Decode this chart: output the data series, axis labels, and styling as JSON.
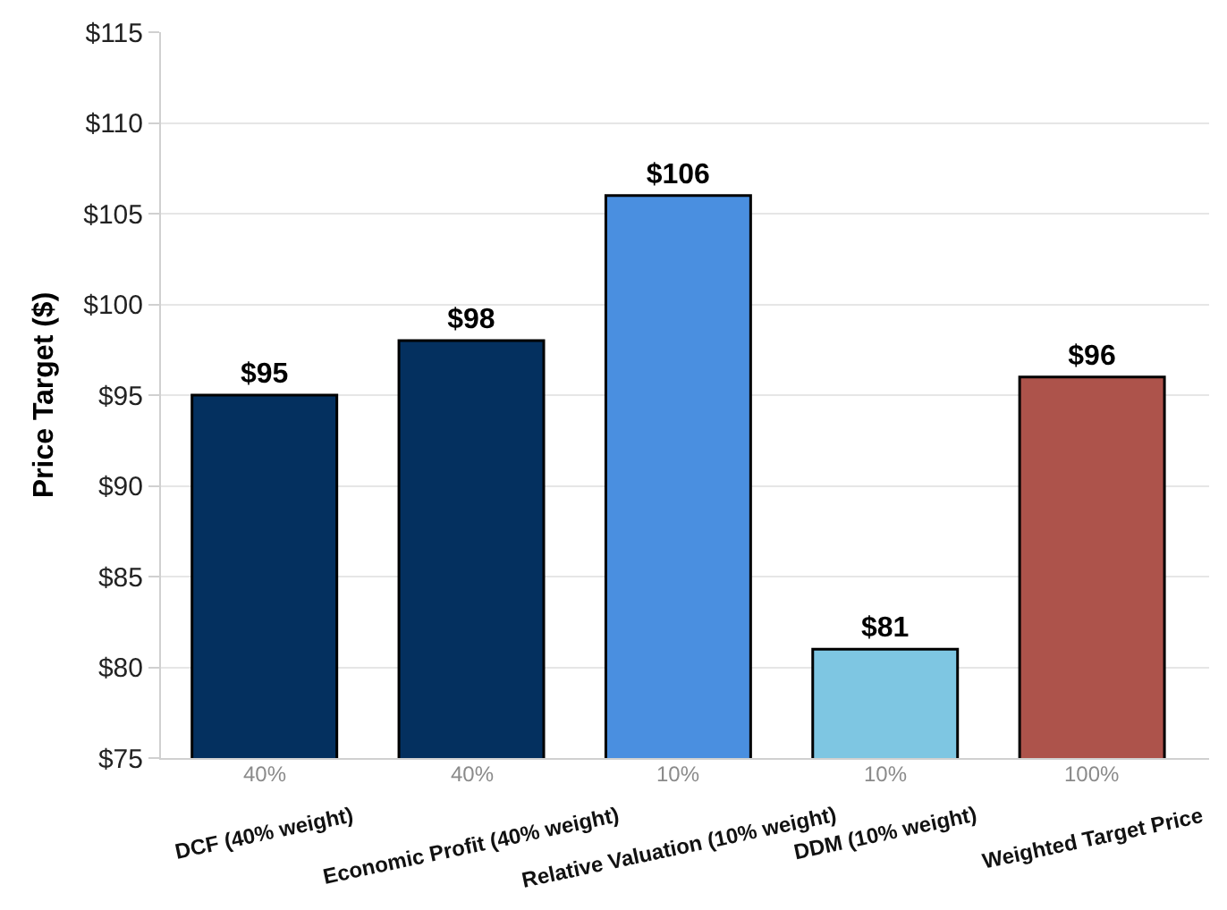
{
  "chart_data": {
    "type": "bar",
    "ylabel": "Price Target ($)",
    "categories": [
      "DCF (40% weight)",
      "Economic Profit (40% weight)",
      "Relative Valuation (10% weight)",
      "DDM (10% weight)",
      "Weighted Target Price"
    ],
    "values": [
      95,
      98,
      106,
      81,
      96
    ],
    "colors": [
      "#04305f",
      "#04305f",
      "#4a8fe0",
      "#7ec6e2",
      "#ad534b"
    ],
    "value_labels": [
      "$95",
      "$98",
      "$106",
      "$81",
      "$96"
    ],
    "ylim": [
      75,
      115
    ],
    "yticks": [
      {
        "value": 75,
        "label": "$75"
      },
      {
        "value": 80,
        "label": "$80"
      },
      {
        "value": 85,
        "label": "$85"
      },
      {
        "value": 90,
        "label": "$90"
      },
      {
        "value": 95,
        "label": "$95"
      },
      {
        "value": 100,
        "label": "$100"
      },
      {
        "value": 105,
        "label": "$105"
      },
      {
        "value": 110,
        "label": "$110"
      },
      {
        "value": 115,
        "label": "$115"
      }
    ],
    "annotations": [
      "40%",
      "40%",
      "10%",
      "10%",
      "100%"
    ],
    "grid": "y",
    "legend": false
  }
}
